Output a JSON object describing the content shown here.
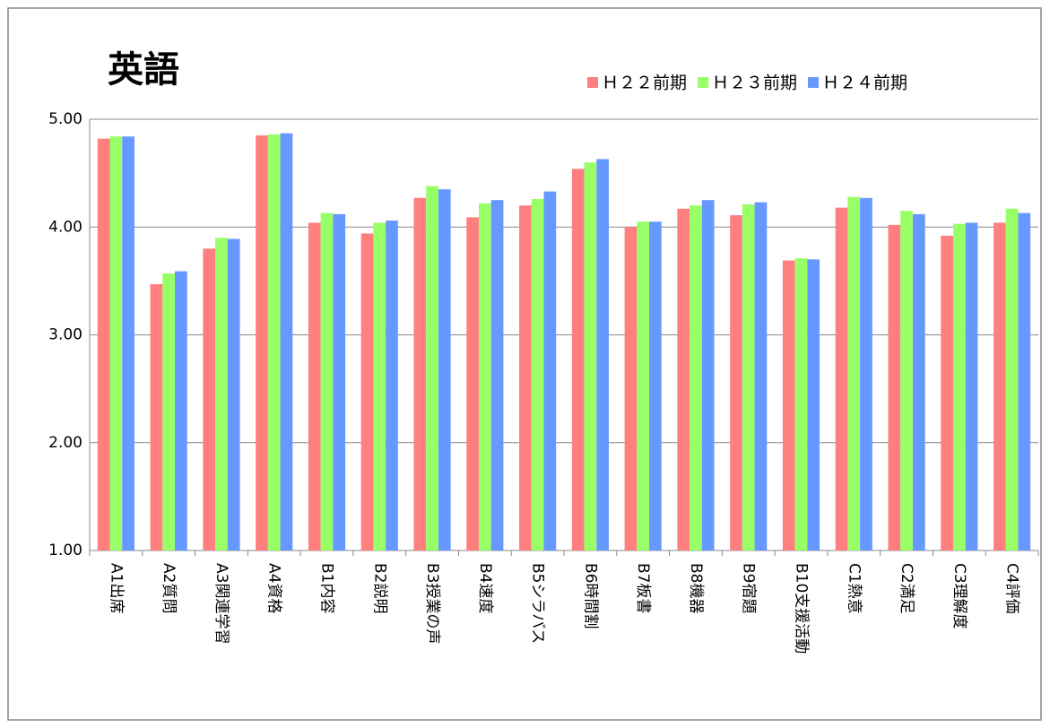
{
  "chart_data": {
    "type": "bar",
    "title": "英語",
    "categories": [
      "A1出席",
      "A2質問",
      "A3関連学習",
      "A4資格",
      "B1内容",
      "B2説明",
      "B3授業の声",
      "B4速度",
      "B5シラバス",
      "B6時間割",
      "B7板書",
      "B8機器",
      "B9宿題",
      "B10支援活動",
      "C1熱意",
      "C2満足",
      "C3理解度",
      "C4評価"
    ],
    "series": [
      {
        "name": "Ｈ２２前期",
        "color": "#ff7f7f",
        "values": [
          4.82,
          3.47,
          3.8,
          4.85,
          4.04,
          3.94,
          4.27,
          4.09,
          4.2,
          4.54,
          4.0,
          4.17,
          4.11,
          3.69,
          4.18,
          4.02,
          3.92,
          4.04
        ]
      },
      {
        "name": "Ｈ２３前期",
        "color": "#99ff66",
        "values": [
          4.84,
          3.57,
          3.9,
          4.86,
          4.13,
          4.04,
          4.38,
          4.22,
          4.26,
          4.6,
          4.05,
          4.2,
          4.21,
          3.71,
          4.28,
          4.15,
          4.03,
          4.17
        ]
      },
      {
        "name": "Ｈ２４前期",
        "color": "#6699ff",
        "values": [
          4.84,
          3.59,
          3.89,
          4.87,
          4.12,
          4.06,
          4.35,
          4.25,
          4.33,
          4.63,
          4.05,
          4.25,
          4.23,
          3.7,
          4.27,
          4.12,
          4.04,
          4.13
        ]
      }
    ],
    "ylim": [
      1,
      5
    ],
    "yticks": [
      {
        "value": 1,
        "label": "1.00"
      },
      {
        "value": 2,
        "label": "2.00"
      },
      {
        "value": 3,
        "label": "3.00"
      },
      {
        "value": 4,
        "label": "4.00"
      },
      {
        "value": 5,
        "label": "5.00"
      }
    ],
    "grid": true,
    "legend": "top-right"
  }
}
